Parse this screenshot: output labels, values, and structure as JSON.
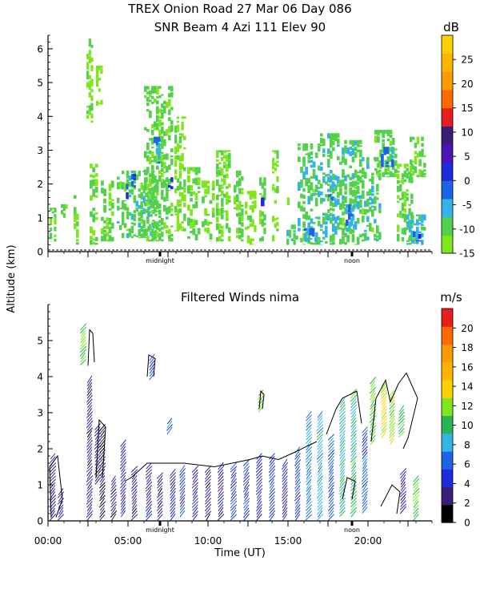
{
  "title_line1": "TREX Onion Road  27 Mar 06 Day 086",
  "title_line2": "SNR Beam 4 Azi 111 Elev 90",
  "shared_ylabel": "Altitude (km)",
  "chart_data": [
    {
      "type": "heatmap",
      "panel": "snr",
      "title": "SNR Beam 4 Azi 111 Elev 90",
      "xlabel": "",
      "ylabel": "Altitude (km)",
      "xlim": [
        0,
        24
      ],
      "ylim": [
        0,
        6.4
      ],
      "y_ticks": [
        "0",
        "1",
        "2",
        "3",
        "4",
        "5",
        "6"
      ],
      "x_marker_labels": [
        {
          "x": 7.0,
          "label": "midnight"
        },
        {
          "x": 19.0,
          "label": "noon"
        }
      ],
      "colorbar": {
        "unit": "dB",
        "tick_labels": [
          "-15",
          "-10",
          "-5",
          "0",
          "5",
          "10",
          "15",
          "20",
          "25"
        ],
        "colors": [
          "#7fe61e",
          "#52d14a",
          "#33b4e6",
          "#1e64e6",
          "#1e2adc",
          "#4b14b4",
          "#3c1e78",
          "#e61e1e",
          "#ff6a00",
          "#ff9a00",
          "#ffb400",
          "#ffd000"
        ],
        "range": [
          -15,
          30
        ]
      },
      "blocks": [
        {
          "x0": 0.1,
          "x1": 0.5,
          "y0": 0.3,
          "y1": 1.3,
          "snr": -10
        },
        {
          "x0": 0.8,
          "x1": 1.2,
          "y0": 1.0,
          "y1": 1.4,
          "snr": -12
        },
        {
          "x0": 1.6,
          "x1": 1.9,
          "y0": 0.2,
          "y1": 1.8,
          "snr": -13
        },
        {
          "x0": 2.4,
          "x1": 2.8,
          "y0": 3.8,
          "y1": 6.3,
          "snr": -13
        },
        {
          "x0": 2.6,
          "x1": 3.1,
          "y0": 0.2,
          "y1": 2.6,
          "snr": -12
        },
        {
          "x0": 3.0,
          "x1": 3.4,
          "y0": 4.2,
          "y1": 5.5,
          "snr": -14
        },
        {
          "x0": 3.3,
          "x1": 4.1,
          "y0": 0.3,
          "y1": 2.1,
          "snr": -11
        },
        {
          "x0": 4.3,
          "x1": 6.8,
          "y0": 0.4,
          "y1": 2.4,
          "snr": -9
        },
        {
          "x0": 4.6,
          "x1": 5.0,
          "y0": 1.5,
          "y1": 2.0,
          "snr": -2
        },
        {
          "x0": 5.2,
          "x1": 5.6,
          "y0": 1.9,
          "y1": 2.3,
          "snr": 0
        },
        {
          "x0": 6.0,
          "x1": 7.8,
          "y0": 0.3,
          "y1": 4.9,
          "snr": -10
        },
        {
          "x0": 6.6,
          "x1": 7.0,
          "y0": 2.6,
          "y1": 3.4,
          "snr": -5
        },
        {
          "x0": 7.5,
          "x1": 7.8,
          "y0": 1.8,
          "y1": 2.2,
          "snr": 3
        },
        {
          "x0": 7.9,
          "x1": 8.6,
          "y0": 0.6,
          "y1": 4.0,
          "snr": -12
        },
        {
          "x0": 8.7,
          "x1": 9.5,
          "y0": 0.3,
          "y1": 2.5,
          "snr": -11
        },
        {
          "x0": 9.6,
          "x1": 10.4,
          "y0": 0.3,
          "y1": 2.1,
          "snr": -12
        },
        {
          "x0": 10.5,
          "x1": 11.4,
          "y0": 0.3,
          "y1": 3.0,
          "snr": -12
        },
        {
          "x0": 11.6,
          "x1": 12.2,
          "y0": 0.3,
          "y1": 2.4,
          "snr": -11
        },
        {
          "x0": 12.3,
          "x1": 13.0,
          "y0": 0.2,
          "y1": 1.8,
          "snr": -13
        },
        {
          "x0": 13.2,
          "x1": 13.6,
          "y0": 0.3,
          "y1": 2.2,
          "snr": -10
        },
        {
          "x0": 13.3,
          "x1": 13.5,
          "y0": 1.3,
          "y1": 1.6,
          "snr": 0
        },
        {
          "x0": 14.0,
          "x1": 14.4,
          "y0": 0.3,
          "y1": 3.0,
          "snr": -13
        },
        {
          "x0": 14.8,
          "x1": 15.2,
          "y0": 1.2,
          "y1": 1.6,
          "snr": -14
        },
        {
          "x0": 14.9,
          "x1": 15.6,
          "y0": 0.2,
          "y1": 0.8,
          "snr": -8
        },
        {
          "x0": 15.6,
          "x1": 17.0,
          "y0": 0.2,
          "y1": 3.2,
          "snr": -9
        },
        {
          "x0": 16.0,
          "x1": 16.8,
          "y0": 0.3,
          "y1": 0.7,
          "snr": -3
        },
        {
          "x0": 17.0,
          "x1": 18.2,
          "y0": 0.2,
          "y1": 3.5,
          "snr": -8
        },
        {
          "x0": 17.5,
          "x1": 18.0,
          "y0": 1.5,
          "y1": 2.0,
          "snr": -4
        },
        {
          "x0": 18.2,
          "x1": 19.6,
          "y0": 0.2,
          "y1": 3.3,
          "snr": -9
        },
        {
          "x0": 18.6,
          "x1": 19.2,
          "y0": 0.6,
          "y1": 1.4,
          "snr": -5
        },
        {
          "x0": 19.6,
          "x1": 20.8,
          "y0": 0.3,
          "y1": 2.8,
          "snr": -9
        },
        {
          "x0": 20.4,
          "x1": 21.8,
          "y0": 2.2,
          "y1": 3.6,
          "snr": -10
        },
        {
          "x0": 20.8,
          "x1": 21.6,
          "y0": 2.5,
          "y1": 3.1,
          "snr": -3
        },
        {
          "x0": 21.8,
          "x1": 22.8,
          "y0": 0.3,
          "y1": 2.6,
          "snr": -10
        },
        {
          "x0": 22.6,
          "x1": 23.6,
          "y0": 2.2,
          "y1": 3.4,
          "snr": -10
        },
        {
          "x0": 22.4,
          "x1": 23.6,
          "y0": 0.2,
          "y1": 1.1,
          "snr": -7
        },
        {
          "x0": 22.8,
          "x1": 23.3,
          "y0": 0.3,
          "y1": 0.6,
          "snr": -2
        }
      ]
    },
    {
      "type": "scatter",
      "panel": "winds",
      "title": "Filtered Winds nima",
      "xlabel": "Time (UT)",
      "ylabel": "Altitude (km)",
      "xlim": [
        0,
        24
      ],
      "ylim": [
        0,
        6.0
      ],
      "x_ticks": [
        "00:00",
        "05:00",
        "10:00",
        "15:00",
        "20:00"
      ],
      "y_ticks": [
        "0",
        "1",
        "2",
        "3",
        "4",
        "5"
      ],
      "x_marker_labels": [
        {
          "x": 7.0,
          "label": "midnight"
        },
        {
          "x": 19.0,
          "label": "noon"
        }
      ],
      "colorbar": {
        "unit": "m/s",
        "tick_labels": [
          "0",
          "2",
          "4",
          "6",
          "8",
          "10",
          "12",
          "14",
          "16",
          "18",
          "20"
        ],
        "colors": [
          "#000000",
          "#3c1e78",
          "#1e2adc",
          "#1e64e6",
          "#33b4e6",
          "#2ab455",
          "#7fe61e",
          "#ffd000",
          "#ffb400",
          "#ff9a00",
          "#ff6a00",
          "#e61e1e"
        ],
        "range": [
          0,
          22
        ]
      },
      "wind_columns": [
        {
          "x": 0.3,
          "y0": 0.1,
          "y1": 1.8,
          "speed": 3
        },
        {
          "x": 0.8,
          "y0": 0.1,
          "y1": 0.9,
          "speed": 3
        },
        {
          "x": 2.2,
          "y0": 4.4,
          "y1": 5.4,
          "speed": 11
        },
        {
          "x": 2.6,
          "y0": 0.1,
          "y1": 4.0,
          "speed": 3
        },
        {
          "x": 3.1,
          "y0": 1.1,
          "y1": 2.7,
          "speed": 3
        },
        {
          "x": 3.4,
          "y0": 0.1,
          "y1": 2.6,
          "speed": 2
        },
        {
          "x": 4.1,
          "y0": 0.1,
          "y1": 1.2,
          "speed": 3
        },
        {
          "x": 4.7,
          "y0": 0.2,
          "y1": 2.2,
          "speed": 4
        },
        {
          "x": 5.4,
          "y0": 0.1,
          "y1": 1.5,
          "speed": 3
        },
        {
          "x": 6.3,
          "y0": 0.1,
          "y1": 1.6,
          "speed": 4
        },
        {
          "x": 6.5,
          "y0": 4.0,
          "y1": 4.6,
          "speed": 6
        },
        {
          "x": 7.0,
          "y0": 0.1,
          "y1": 1.3,
          "speed": 3
        },
        {
          "x": 7.6,
          "y0": 2.5,
          "y1": 2.8,
          "speed": 6
        },
        {
          "x": 7.8,
          "y0": 0.1,
          "y1": 1.4,
          "speed": 4
        },
        {
          "x": 8.4,
          "y0": 0.2,
          "y1": 1.5,
          "speed": 5
        },
        {
          "x": 9.2,
          "y0": 0.1,
          "y1": 1.5,
          "speed": 4
        },
        {
          "x": 10.0,
          "y0": 0.1,
          "y1": 1.5,
          "speed": 3
        },
        {
          "x": 10.8,
          "y0": 0.1,
          "y1": 1.6,
          "speed": 4
        },
        {
          "x": 11.6,
          "y0": 0.1,
          "y1": 1.6,
          "speed": 5
        },
        {
          "x": 12.4,
          "y0": 0.1,
          "y1": 1.7,
          "speed": 5
        },
        {
          "x": 13.2,
          "y0": 0.1,
          "y1": 1.8,
          "speed": 4
        },
        {
          "x": 13.3,
          "y0": 3.1,
          "y1": 3.6,
          "speed": 12
        },
        {
          "x": 14.0,
          "y0": 0.1,
          "y1": 1.8,
          "speed": 5
        },
        {
          "x": 14.8,
          "y0": 0.1,
          "y1": 1.7,
          "speed": 4
        },
        {
          "x": 15.6,
          "y0": 0.1,
          "y1": 2.0,
          "speed": 5
        },
        {
          "x": 16.3,
          "y0": 0.1,
          "y1": 3.0,
          "speed": 7
        },
        {
          "x": 17.0,
          "y0": 0.1,
          "y1": 3.0,
          "speed": 8
        },
        {
          "x": 17.7,
          "y0": 0.1,
          "y1": 2.4,
          "speed": 6
        },
        {
          "x": 18.4,
          "y0": 0.2,
          "y1": 3.4,
          "speed": 9
        },
        {
          "x": 19.1,
          "y0": 0.2,
          "y1": 3.6,
          "speed": 10
        },
        {
          "x": 19.8,
          "y0": 0.3,
          "y1": 2.6,
          "speed": 6
        },
        {
          "x": 20.3,
          "y0": 2.2,
          "y1": 3.9,
          "speed": 11
        },
        {
          "x": 21.0,
          "y0": 2.4,
          "y1": 3.9,
          "speed": 13
        },
        {
          "x": 21.5,
          "y0": 2.2,
          "y1": 3.6,
          "speed": 12
        },
        {
          "x": 22.1,
          "y0": 2.4,
          "y1": 3.2,
          "speed": 10
        },
        {
          "x": 22.2,
          "y0": 0.3,
          "y1": 1.4,
          "speed": 4
        },
        {
          "x": 23.0,
          "y0": 0.1,
          "y1": 1.2,
          "speed": 11
        }
      ]
    }
  ]
}
